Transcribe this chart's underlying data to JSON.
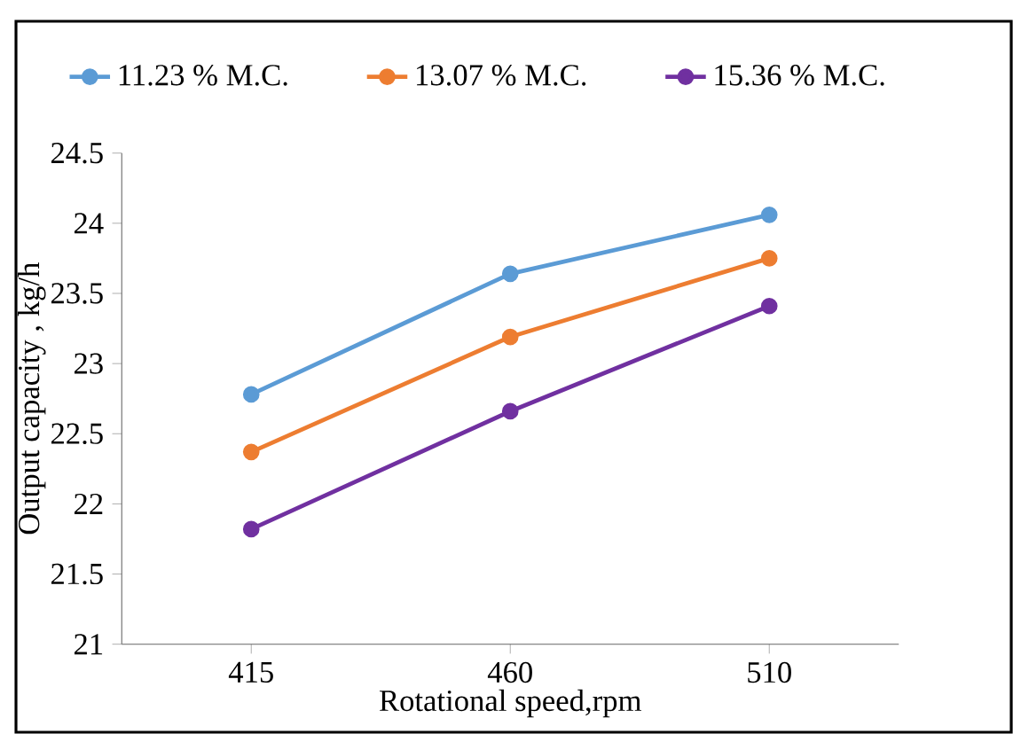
{
  "chart_data": {
    "type": "line",
    "xlabel": "Rotational speed,rpm",
    "ylabel": "Output capacity , kg/h",
    "categories": [
      "415",
      "460",
      "510"
    ],
    "series": [
      {
        "name": "11.23 % M.C.",
        "color": "#5b9bd5",
        "values": [
          22.78,
          23.64,
          24.06
        ]
      },
      {
        "name": "13.07 % M.C.",
        "color": "#ed7d31",
        "values": [
          22.37,
          23.19,
          23.75
        ]
      },
      {
        "name": "15.36 % M.C.",
        "color": "#7030a0",
        "values": [
          21.82,
          22.66,
          23.41
        ]
      }
    ],
    "ylim": [
      21,
      24.5
    ],
    "yticks": [
      21,
      21.5,
      22,
      22.5,
      23,
      23.5,
      24,
      24.5
    ],
    "legend": "top",
    "marker": "circle",
    "line_style": "solid"
  }
}
